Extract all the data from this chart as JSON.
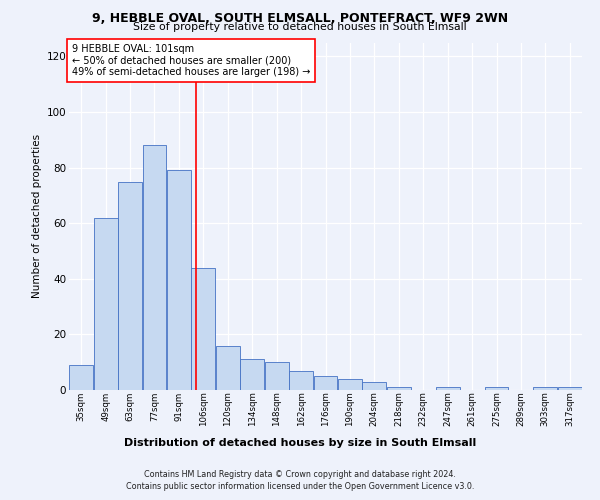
{
  "title1": "9, HEBBLE OVAL, SOUTH ELMSALL, PONTEFRACT, WF9 2WN",
  "title2": "Size of property relative to detached houses in South Elmsall",
  "xlabel": "Distribution of detached houses by size in South Elmsall",
  "ylabel": "Number of detached properties",
  "footer1": "Contains HM Land Registry data © Crown copyright and database right 2024.",
  "footer2": "Contains public sector information licensed under the Open Government Licence v3.0.",
  "annotation_line1": "9 HEBBLE OVAL: 101sqm",
  "annotation_line2": "← 50% of detached houses are smaller (200)",
  "annotation_line3": "49% of semi-detached houses are larger (198) →",
  "bar_labels": [
    "35sqm",
    "49sqm",
    "63sqm",
    "77sqm",
    "91sqm",
    "106sqm",
    "120sqm",
    "134sqm",
    "148sqm",
    "162sqm",
    "176sqm",
    "190sqm",
    "204sqm",
    "218sqm",
    "232sqm",
    "247sqm",
    "261sqm",
    "275sqm",
    "289sqm",
    "303sqm",
    "317sqm"
  ],
  "bar_values": [
    9,
    62,
    75,
    88,
    79,
    44,
    16,
    11,
    10,
    7,
    5,
    4,
    3,
    1,
    0,
    1,
    0,
    1,
    0,
    1,
    1
  ],
  "bar_edges": [
    28,
    42,
    56,
    70,
    84,
    98,
    112,
    126,
    140,
    154,
    168,
    182,
    196,
    210,
    224,
    238,
    252,
    266,
    280,
    294,
    308,
    322
  ],
  "bar_color": "#c6d9f1",
  "bar_edge_color": "#4472c4",
  "vline_x": 101,
  "vline_color": "red",
  "bg_color": "#eef2fb",
  "ylim": [
    0,
    125
  ],
  "yticks": [
    0,
    20,
    40,
    60,
    80,
    100,
    120
  ]
}
